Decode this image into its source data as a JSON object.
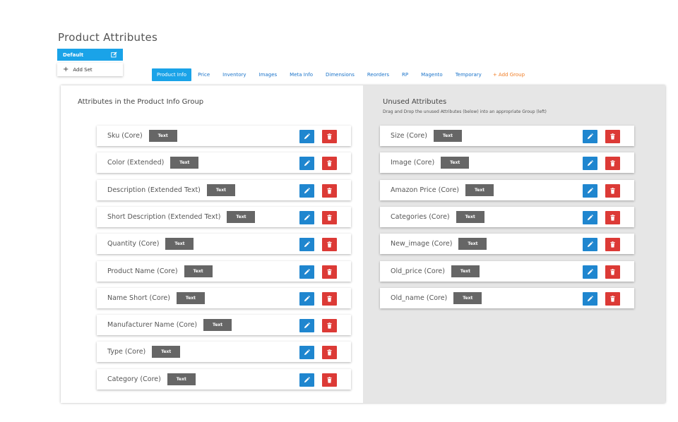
{
  "page": {
    "title": "Product Attributes"
  },
  "sets": {
    "default_label": "Default",
    "add_label": "Add Set"
  },
  "tabs": [
    {
      "label": "Product Info",
      "active": true
    },
    {
      "label": "Price"
    },
    {
      "label": "Inventory"
    },
    {
      "label": "Images"
    },
    {
      "label": "Meta Info"
    },
    {
      "label": "Dimensions"
    },
    {
      "label": "Reorders"
    },
    {
      "label": "RP"
    },
    {
      "label": "Magento"
    },
    {
      "label": "Temporary"
    }
  ],
  "add_group_label": "+ Add Group",
  "left": {
    "title": "Attributes in the Product Info Group",
    "items": [
      {
        "label": "Sku (Core)",
        "badge": "Text"
      },
      {
        "label": "Color (Extended)",
        "badge": "Text"
      },
      {
        "label": "Description (Extended Text)",
        "badge": "Text"
      },
      {
        "label": "Short Description (Extended Text)",
        "badge": "Text"
      },
      {
        "label": "Quantity (Core)",
        "badge": "Text"
      },
      {
        "label": "Product Name (Core)",
        "badge": "Text"
      },
      {
        "label": "Name Short (Core)",
        "badge": "Text"
      },
      {
        "label": "Manufacturer Name (Core)",
        "badge": "Text"
      },
      {
        "label": "Type (Core)",
        "badge": "Text"
      },
      {
        "label": "Category (Core)",
        "badge": "Text"
      }
    ]
  },
  "right": {
    "title": "Unused Attributes",
    "subtitle": "Drag and Drop the unused Attributes (below) into an appropriate Group (left)",
    "items": [
      {
        "label": "Size (Core)",
        "badge": "Text"
      },
      {
        "label": "Image (Core)",
        "badge": "Text"
      },
      {
        "label": "Amazon Price (Core)",
        "badge": "Text"
      },
      {
        "label": "Categories (Core)",
        "badge": "Text"
      },
      {
        "label": "New_image (Core)",
        "badge": "Text"
      },
      {
        "label": "Old_price (Core)",
        "badge": "Text"
      },
      {
        "label": "Old_name (Core)",
        "badge": "Text"
      }
    ]
  },
  "icons": {
    "edit": "pencil-icon",
    "delete": "trash-icon"
  },
  "colors": {
    "accent": "#1aa3e8",
    "edit": "#1f86cf",
    "delete": "#dc3a36",
    "badge": "#666666",
    "add_group": "#f07d25"
  }
}
